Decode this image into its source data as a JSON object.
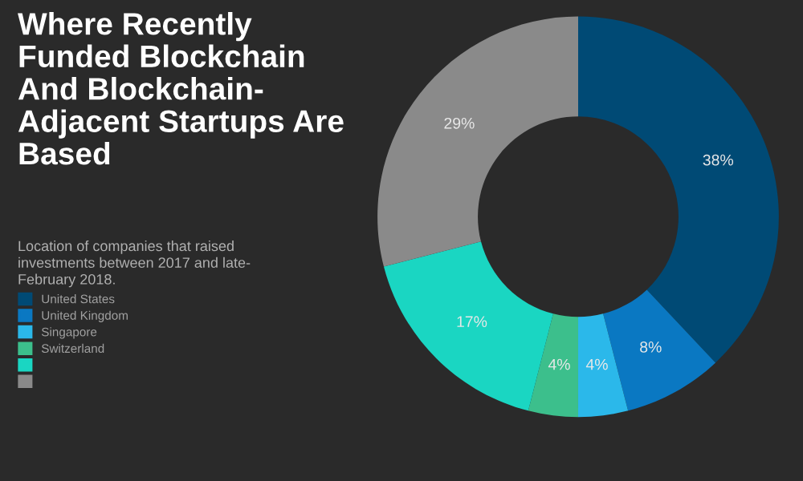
{
  "chart_data": {
    "type": "donut",
    "title": "Where Recently\nFunded Blockchain\nAnd Blockchain-\nAdjacent Startups Are\nBased",
    "subtitle": "Location of companies that raised\ninvestments between 2017 and late-\nFebruary 2018.",
    "categories": [
      "United States",
      "United Kingdom",
      "Singapore",
      "Switzerland",
      null,
      null
    ],
    "values": [
      38,
      8,
      4,
      4,
      17,
      29
    ],
    "value_labels": [
      "38%",
      "8%",
      "4%",
      "4%",
      "17%",
      "29%"
    ],
    "colors": [
      "#004a75",
      "#0a78c2",
      "#2bb8ea",
      "#3cbf8c",
      "#1ad6c2",
      "#8a8a8a"
    ],
    "legend": "bottom left"
  }
}
